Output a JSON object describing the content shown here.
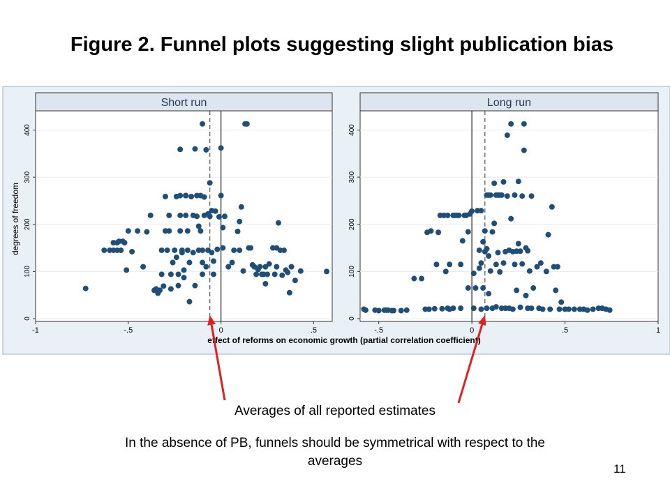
{
  "title": "Figure 2. Funnel plots suggesting slight publication bias",
  "annotation": "Averages of all reported estimates",
  "note": "In the absence of PB, funnels should be symmetrical with respect to the averages",
  "page_number": "11",
  "colors": {
    "dot": "#1f4e79",
    "arrow": "#e02020",
    "panel_header": "#dde6ee",
    "figure_bg": "#eaf1f6"
  },
  "chart_data": [
    {
      "type": "scatter",
      "panel_title": "Short run",
      "xlabel": "effect of reforms on economic growth (partial correlation coefficient)",
      "ylabel": "degrees of freedom",
      "xlim": [
        -1,
        0.6
      ],
      "ylim": [
        0,
        420
      ],
      "x_ticks": [
        -1,
        -0.5,
        0,
        0.5
      ],
      "x_tick_labels": [
        "-1",
        "-.5",
        "0",
        ".5"
      ],
      "y_ticks": [
        0,
        100,
        200,
        300,
        400
      ],
      "y_tick_labels": [
        "0",
        "100",
        "200",
        "300",
        "400"
      ],
      "grid": "horizontal",
      "reference_lines": [
        {
          "x": 0,
          "style": "solid"
        },
        {
          "x": -0.06,
          "style": "dashed"
        }
      ],
      "points": [
        [
          -0.73,
          64
        ],
        [
          -0.63,
          145
        ],
        [
          -0.6,
          145
        ],
        [
          -0.58,
          145
        ],
        [
          -0.56,
          145
        ],
        [
          -0.54,
          145
        ],
        [
          -0.58,
          161
        ],
        [
          -0.56,
          161
        ],
        [
          -0.55,
          164
        ],
        [
          -0.53,
          164
        ],
        [
          -0.52,
          161
        ],
        [
          -0.51,
          103
        ],
        [
          -0.5,
          186
        ],
        [
          -0.48,
          142
        ],
        [
          -0.45,
          186
        ],
        [
          -0.42,
          110
        ],
        [
          -0.4,
          184
        ],
        [
          -0.38,
          219
        ],
        [
          -0.36,
          60
        ],
        [
          -0.35,
          63
        ],
        [
          -0.34,
          54
        ],
        [
          -0.33,
          60
        ],
        [
          -0.32,
          94
        ],
        [
          -0.32,
          145
        ],
        [
          -0.31,
          69
        ],
        [
          -0.3,
          259
        ],
        [
          -0.3,
          186
        ],
        [
          -0.29,
          145
        ],
        [
          -0.28,
          186
        ],
        [
          -0.28,
          219
        ],
        [
          -0.27,
          63
        ],
        [
          -0.27,
          94
        ],
        [
          -0.26,
          119
        ],
        [
          -0.25,
          145
        ],
        [
          -0.24,
          259
        ],
        [
          -0.24,
          130
        ],
        [
          -0.23,
          70
        ],
        [
          -0.23,
          94
        ],
        [
          -0.22,
          359
        ],
        [
          -0.22,
          261
        ],
        [
          -0.22,
          219
        ],
        [
          -0.22,
          186
        ],
        [
          -0.21,
          140
        ],
        [
          -0.21,
          145
        ],
        [
          -0.2,
          87
        ],
        [
          -0.2,
          103
        ],
        [
          -0.19,
          261
        ],
        [
          -0.19,
          261
        ],
        [
          -0.19,
          219
        ],
        [
          -0.18,
          186
        ],
        [
          -0.18,
          145
        ],
        [
          -0.17,
          36
        ],
        [
          -0.17,
          119
        ],
        [
          -0.16,
          259
        ],
        [
          -0.15,
          219
        ],
        [
          -0.15,
          140
        ],
        [
          -0.14,
          360
        ],
        [
          -0.14,
          70
        ],
        [
          -0.13,
          261
        ],
        [
          -0.13,
          217
        ],
        [
          -0.12,
          196
        ],
        [
          -0.12,
          145
        ],
        [
          -0.11,
          261
        ],
        [
          -0.11,
          186
        ],
        [
          -0.1,
          413
        ],
        [
          -0.1,
          145
        ],
        [
          -0.1,
          119
        ],
        [
          -0.1,
          94
        ],
        [
          -0.09,
          258
        ],
        [
          -0.09,
          219
        ],
        [
          -0.08,
          358
        ],
        [
          -0.08,
          110
        ],
        [
          -0.07,
          222
        ],
        [
          -0.07,
          145
        ],
        [
          -0.06,
          288
        ],
        [
          -0.06,
          217
        ],
        [
          -0.05,
          229
        ],
        [
          -0.05,
          140
        ],
        [
          -0.04,
          122
        ],
        [
          -0.04,
          94
        ],
        [
          -0.03,
          228
        ],
        [
          -0.02,
          147
        ],
        [
          -0.01,
          216
        ],
        [
          0.0,
          362
        ],
        [
          0.0,
          261
        ],
        [
          0.01,
          193
        ],
        [
          0.01,
          150
        ],
        [
          0.02,
          217
        ],
        [
          0.04,
          110
        ],
        [
          0.06,
          119
        ],
        [
          0.07,
          145
        ],
        [
          0.09,
          185
        ],
        [
          0.1,
          206
        ],
        [
          0.1,
          145
        ],
        [
          0.11,
          237
        ],
        [
          0.12,
          101
        ],
        [
          0.13,
          413
        ],
        [
          0.14,
          413
        ],
        [
          0.15,
          150
        ],
        [
          0.16,
          150
        ],
        [
          0.17,
          114
        ],
        [
          0.18,
          110
        ],
        [
          0.19,
          94
        ],
        [
          0.2,
          104
        ],
        [
          0.21,
          110
        ],
        [
          0.22,
          94
        ],
        [
          0.23,
          94
        ],
        [
          0.24,
          74
        ],
        [
          0.24,
          110
        ],
        [
          0.25,
          94
        ],
        [
          0.26,
          116
        ],
        [
          0.28,
          150
        ],
        [
          0.29,
          94
        ],
        [
          0.3,
          110
        ],
        [
          0.3,
          150
        ],
        [
          0.31,
          203
        ],
        [
          0.32,
          145
        ],
        [
          0.33,
          92
        ],
        [
          0.34,
          145
        ],
        [
          0.35,
          103
        ],
        [
          0.36,
          98
        ],
        [
          0.37,
          55
        ],
        [
          0.38,
          110
        ],
        [
          0.4,
          81
        ],
        [
          0.43,
          101
        ],
        [
          0.57,
          100
        ]
      ]
    },
    {
      "type": "scatter",
      "panel_title": "Long run",
      "xlim": [
        -0.6,
        1.0
      ],
      "ylim": [
        0,
        420
      ],
      "x_ticks": [
        -0.5,
        0,
        0.5,
        1
      ],
      "x_tick_labels": [
        "-.5",
        "0",
        ".5",
        "1"
      ],
      "y_ticks": [
        0,
        100,
        200,
        300,
        400
      ],
      "y_tick_labels": [
        "0",
        "100",
        "200",
        "300",
        "400"
      ],
      "grid": "horizontal",
      "reference_lines": [
        {
          "x": 0,
          "style": "solid"
        },
        {
          "x": 0.07,
          "style": "dashed"
        }
      ],
      "points": [
        [
          -0.58,
          20
        ],
        [
          -0.57,
          18
        ],
        [
          -0.52,
          18
        ],
        [
          -0.5,
          17
        ],
        [
          -0.47,
          18
        ],
        [
          -0.46,
          18
        ],
        [
          -0.45,
          18
        ],
        [
          -0.43,
          17
        ],
        [
          -0.42,
          17
        ],
        [
          -0.38,
          17
        ],
        [
          -0.35,
          18
        ],
        [
          -0.31,
          85
        ],
        [
          -0.27,
          85
        ],
        [
          -0.25,
          20
        ],
        [
          -0.24,
          183
        ],
        [
          -0.23,
          20
        ],
        [
          -0.22,
          186
        ],
        [
          -0.2,
          21
        ],
        [
          -0.19,
          115
        ],
        [
          -0.18,
          183
        ],
        [
          -0.17,
          219
        ],
        [
          -0.16,
          21
        ],
        [
          -0.15,
          219
        ],
        [
          -0.14,
          100
        ],
        [
          -0.13,
          219
        ],
        [
          -0.13,
          22
        ],
        [
          -0.12,
          115
        ],
        [
          -0.12,
          20
        ],
        [
          -0.1,
          22
        ],
        [
          -0.1,
          219
        ],
        [
          -0.09,
          219
        ],
        [
          -0.08,
          219
        ],
        [
          -0.07,
          219
        ],
        [
          -0.06,
          115
        ],
        [
          -0.06,
          22
        ],
        [
          -0.05,
          165
        ],
        [
          -0.04,
          219
        ],
        [
          -0.03,
          219
        ],
        [
          -0.02,
          184
        ],
        [
          -0.02,
          65
        ],
        [
          -0.01,
          222
        ],
        [
          0.0,
          228
        ],
        [
          0.01,
          96
        ],
        [
          0.01,
          22
        ],
        [
          0.02,
          65
        ],
        [
          0.03,
          229
        ],
        [
          0.04,
          145
        ],
        [
          0.04,
          107
        ],
        [
          0.05,
          229
        ],
        [
          0.05,
          118
        ],
        [
          0.05,
          20
        ],
        [
          0.06,
          163
        ],
        [
          0.06,
          65
        ],
        [
          0.07,
          186
        ],
        [
          0.07,
          142
        ],
        [
          0.08,
          262
        ],
        [
          0.08,
          148
        ],
        [
          0.08,
          22
        ],
        [
          0.09,
          262
        ],
        [
          0.09,
          133
        ],
        [
          0.09,
          53
        ],
        [
          0.1,
          262
        ],
        [
          0.1,
          101
        ],
        [
          0.11,
          184
        ],
        [
          0.11,
          22
        ],
        [
          0.12,
          287
        ],
        [
          0.12,
          202
        ],
        [
          0.13,
          262
        ],
        [
          0.13,
          115
        ],
        [
          0.13,
          25
        ],
        [
          0.14,
          262
        ],
        [
          0.14,
          140
        ],
        [
          0.15,
          262
        ],
        [
          0.15,
          99
        ],
        [
          0.16,
          262
        ],
        [
          0.16,
          22
        ],
        [
          0.17,
          290
        ],
        [
          0.17,
          118
        ],
        [
          0.18,
          142
        ],
        [
          0.18,
          22
        ],
        [
          0.19,
          389
        ],
        [
          0.19,
          260
        ],
        [
          0.2,
          145
        ],
        [
          0.2,
          22
        ],
        [
          0.21,
          413
        ],
        [
          0.21,
          212
        ],
        [
          0.22,
          142
        ],
        [
          0.22,
          20
        ],
        [
          0.23,
          262
        ],
        [
          0.23,
          115
        ],
        [
          0.24,
          143
        ],
        [
          0.24,
          60
        ],
        [
          0.25,
          291
        ],
        [
          0.25,
          159
        ],
        [
          0.26,
          143
        ],
        [
          0.26,
          24
        ],
        [
          0.27,
          260
        ],
        [
          0.27,
          116
        ],
        [
          0.28,
          413
        ],
        [
          0.28,
          357
        ],
        [
          0.29,
          150
        ],
        [
          0.29,
          49
        ],
        [
          0.3,
          144
        ],
        [
          0.3,
          22
        ],
        [
          0.31,
          101
        ],
        [
          0.32,
          260
        ],
        [
          0.32,
          22
        ],
        [
          0.33,
          65
        ],
        [
          0.35,
          110
        ],
        [
          0.36,
          22
        ],
        [
          0.37,
          118
        ],
        [
          0.38,
          20
        ],
        [
          0.4,
          100
        ],
        [
          0.41,
          178
        ],
        [
          0.42,
          20
        ],
        [
          0.43,
          237
        ],
        [
          0.44,
          110
        ],
        [
          0.45,
          60
        ],
        [
          0.46,
          110
        ],
        [
          0.47,
          20
        ],
        [
          0.48,
          35
        ],
        [
          0.5,
          20
        ],
        [
          0.52,
          20
        ],
        [
          0.55,
          20
        ],
        [
          0.58,
          20
        ],
        [
          0.6,
          20
        ],
        [
          0.62,
          18
        ],
        [
          0.65,
          20
        ],
        [
          0.68,
          22
        ],
        [
          0.7,
          22
        ],
        [
          0.72,
          20
        ],
        [
          0.74,
          18
        ]
      ]
    }
  ]
}
